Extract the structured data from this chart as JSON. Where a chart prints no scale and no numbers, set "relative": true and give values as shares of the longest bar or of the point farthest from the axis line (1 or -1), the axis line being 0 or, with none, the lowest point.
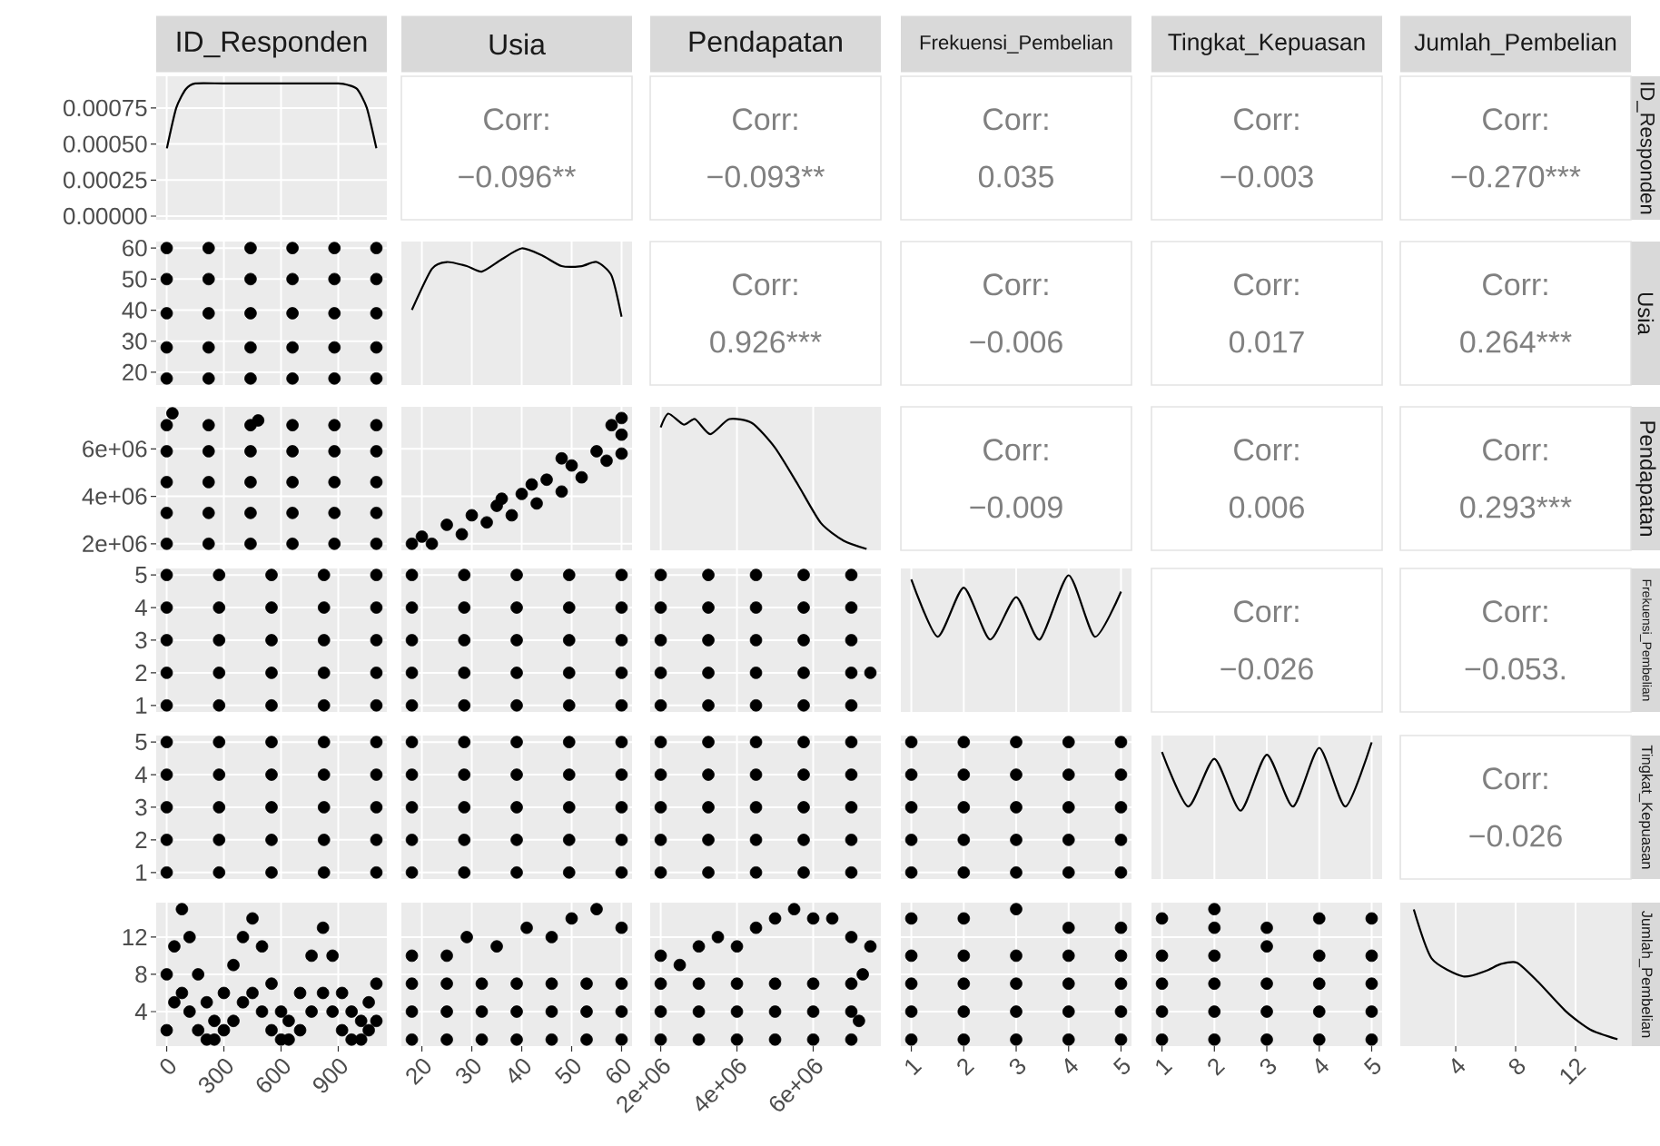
{
  "chart_data": [
    {
      "type": "line",
      "title": "ID_Responden",
      "x": [
        1,
        50,
        100,
        150,
        300,
        500,
        700,
        900,
        950,
        1000,
        1050,
        1100
      ],
      "values": [
        0.00047,
        0.00075,
        0.00088,
        0.00092,
        0.00092,
        0.00092,
        0.00092,
        0.00092,
        0.00091,
        0.00088,
        0.00075,
        0.00047
      ],
      "color": "#000000",
      "xlim": [
        -55,
        1155
      ],
      "xticks": [
        0,
        300,
        600,
        900
      ],
      "ylim": [
        -2.5e-05,
        0.00097
      ],
      "yticks": [
        {
          "value": 0,
          "label": "0.00000"
        },
        {
          "value": 0.00025,
          "label": "0.00025"
        },
        {
          "value": 0.0005,
          "label": "0.00050"
        },
        {
          "value": 0.00075,
          "label": "0.00075"
        }
      ],
      "grid": true,
      "tick_labels": "y"
    },
    {
      "type": "other",
      "title": "Usia",
      "annotations": [
        "Corr:",
        "−0.096**"
      ]
    },
    {
      "type": "other",
      "title": "Pendapatan",
      "annotations": [
        "Corr:",
        "−0.093**"
      ]
    },
    {
      "type": "other",
      "title": "Frekuensi_Pembelian",
      "annotations": [
        "Corr:",
        "0.035"
      ]
    },
    {
      "type": "other",
      "title": "Tingkat_Kepuasan",
      "annotations": [
        "Corr:",
        "−0.003"
      ]
    },
    {
      "type": "other",
      "title": "Jumlah_Pembelian",
      "y2label": "ID_Responden",
      "annotations": [
        "Corr:",
        "−0.270***"
      ]
    },
    {
      "type": "scatter",
      "x": [
        0,
        220,
        440,
        660,
        880,
        1100,
        0,
        220,
        440,
        660,
        880,
        1100,
        0,
        220,
        440,
        660,
        880,
        1100,
        0,
        220,
        440,
        660,
        880,
        1100,
        0,
        220,
        440,
        660,
        880,
        1100
      ],
      "values": [
        18,
        18,
        18,
        18,
        18,
        18,
        28,
        28,
        28,
        28,
        28,
        28,
        39,
        39,
        39,
        39,
        39,
        39,
        50,
        50,
        50,
        50,
        50,
        50,
        60,
        60,
        60,
        60,
        60,
        60
      ],
      "color": "#000000",
      "marker": "circle",
      "xlim": [
        -55,
        1155
      ],
      "xticks": [
        0,
        300,
        600,
        900
      ],
      "ylim": [
        15.9,
        62.1
      ],
      "yticks": [
        20,
        30,
        40,
        50,
        60
      ],
      "grid": true,
      "tick_labels": "y"
    },
    {
      "type": "line",
      "relative": true,
      "x": [
        18,
        22,
        25,
        29,
        32,
        36,
        40,
        44,
        48,
        52,
        55,
        58,
        60
      ],
      "values": [
        0.55,
        0.85,
        0.9,
        0.87,
        0.83,
        0.92,
        1.0,
        0.95,
        0.87,
        0.87,
        0.9,
        0.8,
        0.5
      ],
      "color": "#000000",
      "xlim": [
        15.9,
        62.1
      ],
      "xticks": [
        20,
        30,
        40,
        50,
        60
      ],
      "grid": true,
      "tick_labels": false
    },
    {
      "type": "other",
      "annotations": [
        "Corr:",
        "0.926***"
      ]
    },
    {
      "type": "other",
      "annotations": [
        "Corr:",
        "−0.006"
      ]
    },
    {
      "type": "other",
      "annotations": [
        "Corr:",
        "0.017"
      ]
    },
    {
      "type": "other",
      "y2label": "Usia",
      "annotations": [
        "Corr:",
        "0.264***"
      ]
    },
    {
      "type": "scatter",
      "x": [
        0,
        220,
        440,
        660,
        880,
        1100,
        0,
        220,
        440,
        660,
        880,
        1100,
        0,
        220,
        440,
        660,
        880,
        1100,
        0,
        220,
        440,
        660,
        880,
        1100,
        0,
        220,
        440,
        660,
        880,
        1100,
        30,
        480
      ],
      "values": [
        2000000,
        2000000,
        2000000,
        2000000,
        2000000,
        2000000,
        3300000,
        3300000,
        3300000,
        3300000,
        3300000,
        3300000,
        4600000,
        4600000,
        4600000,
        4600000,
        4600000,
        4600000,
        5900000,
        5900000,
        5900000,
        5900000,
        5900000,
        5900000,
        7000000,
        7000000,
        7000000,
        7000000,
        7000000,
        7000000,
        7500000,
        7200000
      ],
      "color": "#000000",
      "marker": "circle",
      "xlim": [
        -55,
        1155
      ],
      "xticks": [
        0,
        300,
        600,
        900
      ],
      "ylim": [
        1725000,
        7775000
      ],
      "yticks": [
        {
          "value": 2000000,
          "label": "2e+06"
        },
        {
          "value": 4000000,
          "label": "4e+06"
        },
        {
          "value": 6000000,
          "label": "6e+06"
        }
      ],
      "grid": true,
      "tick_labels": "y"
    },
    {
      "type": "scatter",
      "x": [
        18,
        20,
        22,
        25,
        28,
        30,
        33,
        35,
        38,
        40,
        43,
        45,
        48,
        50,
        52,
        55,
        57,
        60,
        60,
        58,
        60,
        48,
        42,
        36
      ],
      "values": [
        2000000,
        2300000,
        2000000,
        2800000,
        2400000,
        3200000,
        2900000,
        3600000,
        3200000,
        4100000,
        3700000,
        4700000,
        4200000,
        5300000,
        4800000,
        5900000,
        5500000,
        6600000,
        5800000,
        7000000,
        7300000,
        5600000,
        4500000,
        3900000
      ],
      "color": "#000000",
      "marker": "circle",
      "xlim": [
        15.9,
        62.1
      ],
      "xticks": [
        20,
        30,
        40,
        50,
        60
      ],
      "ylim": [
        1725000,
        7775000
      ],
      "yticks": [
        {
          "value": 2000000,
          "label": null
        },
        {
          "value": 4000000,
          "label": null
        },
        {
          "value": 6000000,
          "label": null
        }
      ],
      "grid": true,
      "tick_labels": false
    },
    {
      "type": "line",
      "relative": true,
      "x": [
        2000000,
        2200000,
        2600000,
        2900000,
        3300000,
        3800000,
        4400000,
        5000000,
        5600000,
        6200000,
        6800000,
        7400000
      ],
      "values": [
        0.9,
        1.0,
        0.92,
        0.96,
        0.85,
        0.96,
        0.93,
        0.75,
        0.48,
        0.2,
        0.07,
        0.01
      ],
      "color": "#000000",
      "xlim": [
        1725000,
        7775000
      ],
      "xticks": [
        {
          "value": 2000000,
          "label": null
        },
        {
          "value": 4000000,
          "label": null
        },
        {
          "value": 6000000,
          "label": null
        }
      ],
      "grid": true,
      "tick_labels": false
    },
    {
      "type": "other",
      "annotations": [
        "Corr:",
        "−0.009"
      ]
    },
    {
      "type": "other",
      "annotations": [
        "Corr:",
        "0.006"
      ]
    },
    {
      "type": "other",
      "y2label": "Pendapatan",
      "annotations": [
        "Corr:",
        "0.293***"
      ]
    },
    {
      "type": "scatter",
      "x": [
        0,
        275,
        550,
        825,
        1100,
        0,
        275,
        550,
        825,
        1100,
        0,
        275,
        550,
        825,
        1100,
        0,
        275,
        550,
        825,
        1100,
        0,
        275,
        550,
        825,
        1100
      ],
      "values": [
        1,
        1,
        1,
        1,
        1,
        2,
        2,
        2,
        2,
        2,
        3,
        3,
        3,
        3,
        3,
        4,
        4,
        4,
        4,
        4,
        5,
        5,
        5,
        5,
        5
      ],
      "color": "#000000",
      "marker": "circle",
      "xlim": [
        -55,
        1155
      ],
      "xticks": [
        0,
        300,
        600,
        900
      ],
      "ylim": [
        0.8,
        5.2
      ],
      "yticks": [
        1,
        2,
        3,
        4,
        5
      ],
      "grid": true,
      "tick_labels": "y"
    },
    {
      "type": "scatter",
      "x": [
        18,
        28.5,
        39,
        49.5,
        60,
        18,
        28.5,
        39,
        49.5,
        60,
        18,
        28.5,
        39,
        49.5,
        60,
        18,
        28.5,
        39,
        49.5,
        60,
        18,
        28.5,
        39,
        49.5,
        60
      ],
      "values": [
        1,
        1,
        1,
        1,
        1,
        2,
        2,
        2,
        2,
        2,
        3,
        3,
        3,
        3,
        3,
        4,
        4,
        4,
        4,
        4,
        5,
        5,
        5,
        5,
        5
      ],
      "color": "#000000",
      "marker": "circle",
      "xlim": [
        15.9,
        62.1
      ],
      "xticks": [
        20,
        30,
        40,
        50,
        60
      ],
      "ylim": [
        0.8,
        5.2
      ],
      "yticks": [
        1,
        2,
        3,
        4,
        5
      ],
      "grid": true,
      "tick_labels": false
    },
    {
      "type": "scatter",
      "x": [
        2000000,
        3250000,
        4500000,
        5750000,
        7000000,
        2000000,
        3250000,
        4500000,
        5750000,
        7000000,
        2000000,
        3250000,
        4500000,
        5750000,
        7000000,
        2000000,
        3250000,
        4500000,
        5750000,
        7000000,
        2000000,
        3250000,
        4500000,
        5750000,
        7000000,
        7500000
      ],
      "values": [
        1,
        1,
        1,
        1,
        1,
        2,
        2,
        2,
        2,
        2,
        3,
        3,
        3,
        3,
        3,
        4,
        4,
        4,
        4,
        4,
        5,
        5,
        5,
        5,
        5,
        2
      ],
      "color": "#000000",
      "marker": "circle",
      "xlim": [
        1725000,
        7775000
      ],
      "xticks": [
        {
          "value": 2000000,
          "label": null
        },
        {
          "value": 4000000,
          "label": null
        },
        {
          "value": 6000000,
          "label": null
        }
      ],
      "ylim": [
        0.8,
        5.2
      ],
      "yticks": [
        1,
        2,
        3,
        4,
        5
      ],
      "grid": true,
      "tick_labels": false
    },
    {
      "type": "line",
      "relative": true,
      "x": [
        1,
        1.5,
        2,
        2.5,
        3,
        3.45,
        4,
        4.5,
        5
      ],
      "values": [
        0.97,
        0.55,
        0.91,
        0.53,
        0.84,
        0.53,
        1.0,
        0.55,
        0.88
      ],
      "color": "#000000",
      "xlim": [
        0.8,
        5.2
      ],
      "xticks": [
        1,
        2,
        3,
        4,
        5
      ],
      "grid": true,
      "tick_labels": false
    },
    {
      "type": "other",
      "annotations": [
        "Corr:",
        "−0.026"
      ]
    },
    {
      "type": "other",
      "y2label": "Frekuensi_Pembelian",
      "annotations": [
        "Corr:",
        "−0.053."
      ]
    },
    {
      "type": "scatter",
      "x": [
        0,
        275,
        550,
        825,
        1100,
        0,
        275,
        550,
        825,
        1100,
        0,
        275,
        550,
        825,
        1100,
        0,
        275,
        550,
        825,
        1100,
        0,
        275,
        550,
        825,
        1100
      ],
      "values": [
        1,
        1,
        1,
        1,
        1,
        2,
        2,
        2,
        2,
        2,
        3,
        3,
        3,
        3,
        3,
        4,
        4,
        4,
        4,
        4,
        5,
        5,
        5,
        5,
        5
      ],
      "color": "#000000",
      "marker": "circle",
      "xlim": [
        -55,
        1155
      ],
      "xticks": [
        0,
        300,
        600,
        900
      ],
      "ylim": [
        0.8,
        5.2
      ],
      "yticks": [
        1,
        2,
        3,
        4,
        5
      ],
      "grid": true,
      "tick_labels": "y"
    },
    {
      "type": "scatter",
      "x": [
        18,
        28.5,
        39,
        49.5,
        60,
        18,
        28.5,
        39,
        49.5,
        60,
        18,
        28.5,
        39,
        49.5,
        60,
        18,
        28.5,
        39,
        49.5,
        60,
        18,
        28.5,
        39,
        49.5,
        60
      ],
      "values": [
        1,
        1,
        1,
        1,
        1,
        2,
        2,
        2,
        2,
        2,
        3,
        3,
        3,
        3,
        3,
        4,
        4,
        4,
        4,
        4,
        5,
        5,
        5,
        5,
        5
      ],
      "color": "#000000",
      "marker": "circle",
      "xlim": [
        15.9,
        62.1
      ],
      "xticks": [
        20,
        30,
        40,
        50,
        60
      ],
      "ylim": [
        0.8,
        5.2
      ],
      "yticks": [
        1,
        2,
        3,
        4,
        5
      ],
      "grid": true,
      "tick_labels": false
    },
    {
      "type": "scatter",
      "x": [
        2000000,
        3250000,
        4500000,
        5750000,
        7000000,
        2000000,
        3250000,
        4500000,
        5750000,
        7000000,
        2000000,
        3250000,
        4500000,
        5750000,
        7000000,
        2000000,
        3250000,
        4500000,
        5750000,
        7000000,
        2000000,
        3250000,
        4500000,
        5750000,
        7000000
      ],
      "values": [
        1,
        1,
        1,
        1,
        1,
        2,
        2,
        2,
        2,
        2,
        3,
        3,
        3,
        3,
        3,
        4,
        4,
        4,
        4,
        4,
        5,
        5,
        5,
        5,
        5
      ],
      "color": "#000000",
      "marker": "circle",
      "xlim": [
        1725000,
        7775000
      ],
      "xticks": [
        {
          "value": 2000000,
          "label": null
        },
        {
          "value": 4000000,
          "label": null
        },
        {
          "value": 6000000,
          "label": null
        }
      ],
      "ylim": [
        0.8,
        5.2
      ],
      "yticks": [
        1,
        2,
        3,
        4,
        5
      ],
      "grid": true,
      "tick_labels": false
    },
    {
      "type": "scatter",
      "x": [
        1,
        2,
        3,
        4,
        5,
        1,
        2,
        3,
        4,
        5,
        1,
        2,
        3,
        4,
        5,
        1,
        2,
        3,
        4,
        5,
        1,
        2,
        3,
        4,
        5
      ],
      "values": [
        1,
        1,
        1,
        1,
        1,
        2,
        2,
        2,
        2,
        2,
        3,
        3,
        3,
        3,
        3,
        4,
        4,
        4,
        4,
        4,
        5,
        5,
        5,
        5,
        5
      ],
      "color": "#000000",
      "marker": "circle",
      "xlim": [
        0.8,
        5.2
      ],
      "xticks": [
        1,
        2,
        3,
        4,
        5
      ],
      "ylim": [
        0.8,
        5.2
      ],
      "yticks": [
        1,
        2,
        3,
        4,
        5
      ],
      "grid": true,
      "tick_labels": false
    },
    {
      "type": "line",
      "relative": true,
      "x": [
        1,
        1.5,
        2,
        2.5,
        3,
        3.5,
        4,
        4.5,
        5
      ],
      "values": [
        0.93,
        0.53,
        0.88,
        0.5,
        0.91,
        0.53,
        0.96,
        0.53,
        1.0
      ],
      "color": "#000000",
      "xlim": [
        0.8,
        5.2
      ],
      "xticks": [
        1,
        2,
        3,
        4,
        5
      ],
      "grid": true,
      "tick_labels": false
    },
    {
      "type": "other",
      "y2label": "Tingkat_Kepuasan",
      "annotations": [
        "Corr:",
        "−0.026"
      ]
    },
    {
      "type": "scatter",
      "x": [
        0,
        0,
        40,
        40,
        80,
        80,
        120,
        120,
        165,
        165,
        210,
        210,
        250,
        250,
        300,
        300,
        350,
        350,
        400,
        400,
        450,
        450,
        500,
        500,
        550,
        550,
        600,
        600,
        640,
        640,
        700,
        700,
        760,
        760,
        820,
        820,
        870,
        870,
        920,
        920,
        970,
        970,
        1020,
        1020,
        1060,
        1060,
        1100,
        1100
      ],
      "values": [
        2,
        8,
        5,
        11,
        6,
        15,
        4,
        12,
        2,
        8,
        1,
        5,
        1,
        3,
        2,
        6,
        3,
        9,
        5,
        12,
        6,
        14,
        4,
        11,
        2,
        7,
        1,
        4,
        1,
        3,
        2,
        6,
        4,
        10,
        6,
        13,
        4,
        10,
        2,
        6,
        1,
        4,
        1,
        3,
        2,
        5,
        3,
        7
      ],
      "color": "#000000",
      "marker": "circle",
      "xlim": [
        -55,
        1155
      ],
      "xticks": [
        0,
        300,
        600,
        900
      ],
      "ylim": [
        0.3,
        15.7
      ],
      "yticks": [
        4,
        8,
        12
      ],
      "grid": true
    },
    {
      "type": "scatter",
      "x": [
        18,
        25,
        32,
        39,
        46,
        53,
        60,
        18,
        25,
        32,
        39,
        46,
        53,
        60,
        18,
        25,
        32,
        39,
        46,
        53,
        60,
        18,
        25,
        29,
        35,
        41,
        46,
        50,
        55,
        60
      ],
      "values": [
        1,
        1,
        1,
        1,
        1,
        1,
        1,
        4,
        4,
        4,
        4,
        4,
        4,
        4,
        7,
        7,
        7,
        7,
        7,
        7,
        7,
        10,
        10,
        12,
        11,
        13,
        12,
        14,
        15,
        13
      ],
      "color": "#000000",
      "marker": "circle",
      "xlim": [
        15.9,
        62.1
      ],
      "xticks": [
        20,
        30,
        40,
        50,
        60
      ],
      "ylim": [
        0.3,
        15.7
      ],
      "yticks": [
        4,
        8,
        12
      ],
      "grid": true,
      "tick_labels": "x"
    },
    {
      "type": "scatter",
      "x": [
        2000000,
        3000000,
        4000000,
        5000000,
        6000000,
        7000000,
        2000000,
        3000000,
        4000000,
        5000000,
        6000000,
        7000000,
        2000000,
        3000000,
        4000000,
        5000000,
        6000000,
        7000000,
        2000000,
        2500000,
        3000000,
        3500000,
        4000000,
        4500000,
        5000000,
        5500000,
        6000000,
        6500000,
        7000000,
        7500000,
        7200000,
        7300000
      ],
      "values": [
        1,
        1,
        1,
        1,
        1,
        1,
        4,
        4,
        4,
        4,
        4,
        4,
        7,
        7,
        7,
        7,
        7,
        7,
        10,
        9,
        11,
        12,
        11,
        13,
        14,
        15,
        14,
        14,
        12,
        11,
        3,
        8
      ],
      "color": "#000000",
      "marker": "circle",
      "xlim": [
        1725000,
        7775000
      ],
      "xticks": [
        {
          "value": 2000000,
          "label": "2e+06"
        },
        {
          "value": 4000000,
          "label": "4e+06"
        },
        {
          "value": 6000000,
          "label": "6e+06"
        }
      ],
      "ylim": [
        0.3,
        15.7
      ],
      "yticks": [
        4,
        8,
        12
      ],
      "grid": true,
      "tick_labels": "x"
    },
    {
      "type": "scatter",
      "x": [
        1,
        1,
        1,
        1,
        1,
        2,
        2,
        2,
        2,
        2,
        3,
        3,
        3,
        3,
        3,
        4,
        4,
        4,
        4,
        4,
        5,
        5,
        5,
        5,
        5
      ],
      "values": [
        1,
        4,
        7,
        10,
        14,
        1,
        4,
        7,
        10,
        14,
        1,
        4,
        7,
        10,
        15,
        1,
        4,
        7,
        10,
        13,
        1,
        4,
        7,
        10,
        13
      ],
      "color": "#000000",
      "marker": "circle",
      "xlim": [
        0.8,
        5.2
      ],
      "xticks": [
        1,
        2,
        3,
        4,
        5
      ],
      "ylim": [
        0.3,
        15.7
      ],
      "yticks": [
        4,
        8,
        12
      ],
      "grid": true,
      "tick_labels": "x"
    },
    {
      "type": "scatter",
      "x": [
        1,
        1,
        1,
        1,
        1,
        2,
        2,
        2,
        2,
        2,
        2,
        3,
        3,
        3,
        3,
        3,
        4,
        4,
        4,
        4,
        4,
        5,
        5,
        5,
        5,
        5
      ],
      "values": [
        1,
        4,
        7,
        10,
        14,
        1,
        4,
        7,
        10,
        13,
        15,
        1,
        4,
        7,
        11,
        13,
        1,
        4,
        7,
        10,
        14,
        1,
        4,
        7,
        10,
        14
      ],
      "color": "#000000",
      "marker": "circle",
      "xlim": [
        0.8,
        5.2
      ],
      "xticks": [
        1,
        2,
        3,
        4,
        5
      ],
      "ylim": [
        0.3,
        15.7
      ],
      "yticks": [
        4,
        8,
        12
      ],
      "grid": true,
      "tick_labels": "x"
    },
    {
      "type": "line",
      "relative": true,
      "y2label": "Jumlah_Pembelian",
      "x": [
        1.2,
        2.4,
        4.5,
        6,
        7,
        8.1,
        9.5,
        11.4,
        13,
        14.8
      ],
      "values": [
        1.0,
        0.64,
        0.51,
        0.55,
        0.6,
        0.61,
        0.47,
        0.25,
        0.12,
        0.05
      ],
      "color": "#000000",
      "xlim": [
        0.3,
        15.7
      ],
      "xticks": [
        4,
        8,
        12
      ],
      "grid": true,
      "tick_labels": "x"
    }
  ]
}
